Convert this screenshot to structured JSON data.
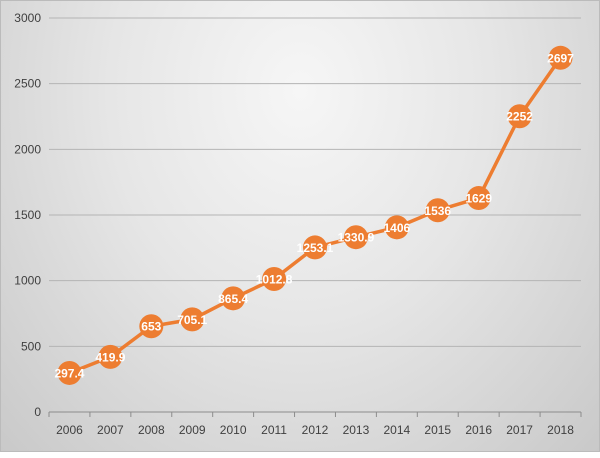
{
  "chart_data": {
    "type": "line",
    "title": "",
    "xlabel": "",
    "ylabel": "",
    "categories": [
      "2006",
      "2007",
      "2008",
      "2009",
      "2010",
      "2011",
      "2012",
      "2013",
      "2014",
      "2015",
      "2016",
      "2017",
      "2018"
    ],
    "values": [
      297.4,
      419.9,
      653,
      705.1,
      865.4,
      1012.8,
      1253.1,
      1330.9,
      1406,
      1536,
      1629,
      2252,
      2697
    ],
    "labels": [
      "297.4",
      "419.9",
      "653",
      "705.1",
      "865.4",
      "1012.8",
      "1253.1",
      "1330.9",
      "1406",
      "1536",
      "1629",
      "2252",
      "2697"
    ],
    "ylim": [
      0,
      3000
    ],
    "yticks": [
      "0",
      "500",
      "1000",
      "1500",
      "2000",
      "2500",
      "3000"
    ],
    "grid": true,
    "legend": "none",
    "color": "#ED7D31"
  }
}
